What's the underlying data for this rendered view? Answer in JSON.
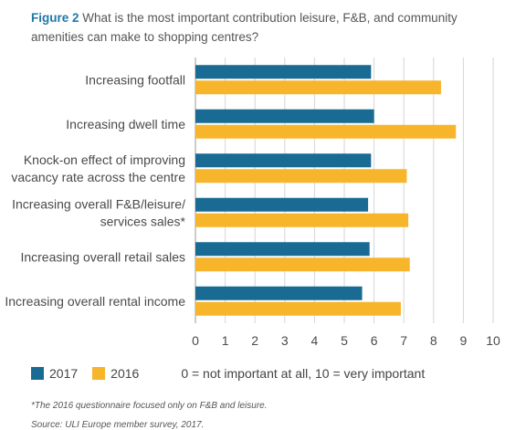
{
  "title": {
    "figure_label": "Figure 2",
    "text": "What is the most important contribution leisure, F&B, and community amenities can make to shopping centres?"
  },
  "chart_data": {
    "type": "bar",
    "orientation": "horizontal",
    "categories": [
      [
        "Increasing footfall"
      ],
      [
        "Increasing dwell time"
      ],
      [
        "Knock-on effect of improving",
        "vacancy rate across the centre"
      ],
      [
        "Increasing overall F&B/leisure/",
        "services sales*"
      ],
      [
        "Increasing overall retail sales"
      ],
      [
        "Increasing overall rental income"
      ]
    ],
    "series": [
      {
        "name": "2017",
        "color": "#1a6b93",
        "values": [
          5.9,
          6.0,
          5.9,
          5.8,
          5.85,
          5.6
        ]
      },
      {
        "name": "2016",
        "color": "#f7b52c",
        "values": [
          8.25,
          8.75,
          7.1,
          7.15,
          7.2,
          6.9
        ]
      }
    ],
    "xlim": [
      0,
      10
    ],
    "xticks": [
      "0",
      "1",
      "2",
      "3",
      "4",
      "5",
      "6",
      "7",
      "8",
      "9",
      "10"
    ],
    "grid": "vertical"
  },
  "legend": {
    "items": [
      {
        "label": "2017",
        "color": "#1a6b93"
      },
      {
        "label": "2016",
        "color": "#f7b52c"
      }
    ],
    "scale_note": "0 = not important at all, 10 = very important"
  },
  "footnotes": {
    "note": "*The 2016 questionnaire focused only on F&B and leisure.",
    "source": "Source: ULI Europe member survey, 2017."
  }
}
